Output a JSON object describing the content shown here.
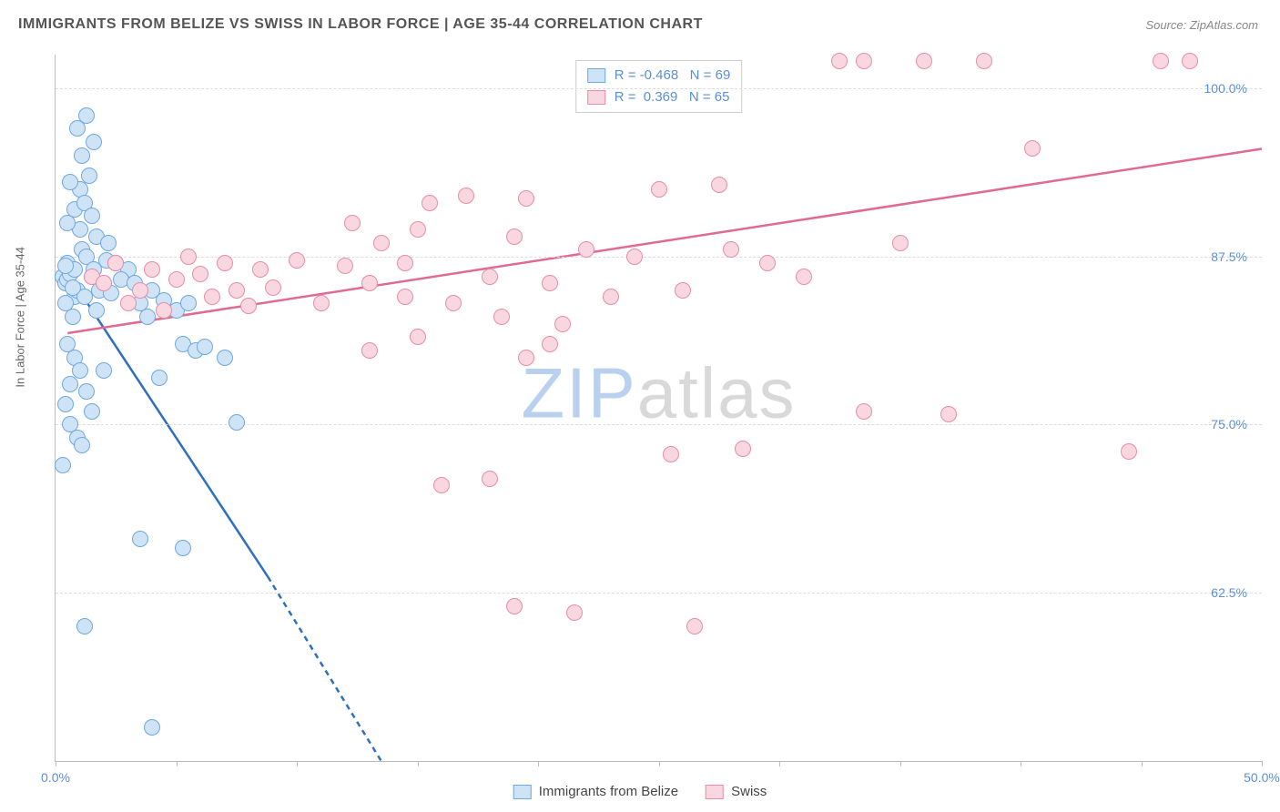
{
  "title": "IMMIGRANTS FROM BELIZE VS SWISS IN LABOR FORCE | AGE 35-44 CORRELATION CHART",
  "source": "Source: ZipAtlas.com",
  "ylabel": "In Labor Force | Age 35-44",
  "watermark_zip": "ZIP",
  "watermark_atlas": "atlas",
  "watermark_color_zip": "#b9d1ee",
  "watermark_color_atlas": "#d9d9d9",
  "chart": {
    "type": "scatter",
    "background_color": "#ffffff",
    "grid_color": "#dddddd",
    "axis_color": "#bbbbbb",
    "tick_label_color": "#5b8fd6",
    "axis_label_color": "#666666",
    "xlim": [
      0,
      50
    ],
    "ylim": [
      50,
      102.5
    ],
    "xticks": [
      0,
      5,
      10,
      15,
      20,
      25,
      30,
      35,
      40,
      45,
      50
    ],
    "xtick_labels": {
      "0": "0.0%",
      "50": "50.0%"
    },
    "yticks": [
      62.5,
      75,
      87.5,
      100
    ],
    "ytick_labels": [
      "62.5%",
      "75.0%",
      "87.5%",
      "100.0%"
    ],
    "marker_radius": 9,
    "line_width": 2.5,
    "series": [
      {
        "name": "Immigrants from Belize",
        "fill": "#cfe3f7",
        "stroke": "#6fa8e0",
        "line_color": "#2f6fc2",
        "R": "-0.468",
        "N": "69",
        "trend": {
          "x1": 0.3,
          "y1": 86.8,
          "x2": 8.8,
          "y2": 63.7,
          "dash_x2": 13.5,
          "dash_y2": 50
        },
        "points": [
          [
            0.3,
            86
          ],
          [
            0.4,
            85.5
          ],
          [
            0.6,
            86.2
          ],
          [
            0.8,
            84.5
          ],
          [
            0.5,
            87
          ],
          [
            0.9,
            85
          ],
          [
            1.1,
            88
          ],
          [
            1.0,
            89.5
          ],
          [
            1.3,
            87.5
          ],
          [
            0.7,
            83
          ],
          [
            0.4,
            84
          ],
          [
            1.5,
            86
          ],
          [
            1.2,
            84.5
          ],
          [
            1.8,
            85
          ],
          [
            1.6,
            86.5
          ],
          [
            2.0,
            85.5
          ],
          [
            1.7,
            83.5
          ],
          [
            2.3,
            84.8
          ],
          [
            2.1,
            87.2
          ],
          [
            0.5,
            90
          ],
          [
            0.8,
            91
          ],
          [
            1.0,
            92.5
          ],
          [
            1.2,
            91.5
          ],
          [
            1.5,
            90.5
          ],
          [
            0.6,
            93
          ],
          [
            1.4,
            93.5
          ],
          [
            1.1,
            95
          ],
          [
            1.6,
            96
          ],
          [
            1.3,
            98
          ],
          [
            0.9,
            97
          ],
          [
            1.7,
            89
          ],
          [
            2.2,
            88.5
          ],
          [
            2.5,
            87
          ],
          [
            3.0,
            86.5
          ],
          [
            2.7,
            85.8
          ],
          [
            3.3,
            85.5
          ],
          [
            3.5,
            84
          ],
          [
            3.8,
            83
          ],
          [
            4.0,
            85
          ],
          [
            4.5,
            84.2
          ],
          [
            5.0,
            83.5
          ],
          [
            5.5,
            84
          ],
          [
            5.3,
            81
          ],
          [
            5.8,
            80.5
          ],
          [
            6.2,
            80.8
          ],
          [
            4.3,
            78.5
          ],
          [
            7.0,
            80
          ],
          [
            7.5,
            75.2
          ],
          [
            0.5,
            81
          ],
          [
            0.8,
            80
          ],
          [
            1.0,
            79
          ],
          [
            1.3,
            77.5
          ],
          [
            0.6,
            75
          ],
          [
            0.4,
            76.5
          ],
          [
            0.9,
            74
          ],
          [
            1.1,
            73.5
          ],
          [
            0.3,
            72
          ],
          [
            0.6,
            78
          ],
          [
            1.5,
            76
          ],
          [
            2.0,
            79
          ],
          [
            3.5,
            66.5
          ],
          [
            5.3,
            65.8
          ],
          [
            1.2,
            60
          ],
          [
            0.5,
            85.8
          ],
          [
            0.6,
            86.2
          ],
          [
            0.8,
            86.5
          ],
          [
            0.4,
            86.8
          ],
          [
            0.7,
            85.2
          ],
          [
            4.0,
            52.5
          ]
        ]
      },
      {
        "name": "Swiss",
        "fill": "#f9d7e1",
        "stroke": "#e88ca8",
        "line_color": "#e06a91",
        "R": "0.369",
        "N": "65",
        "trend": {
          "x1": 0.5,
          "y1": 81.8,
          "x2": 50,
          "y2": 95.5
        },
        "points": [
          [
            1.5,
            86
          ],
          [
            2.0,
            85.5
          ],
          [
            2.5,
            87
          ],
          [
            3.0,
            84
          ],
          [
            3.5,
            85
          ],
          [
            4.0,
            86.5
          ],
          [
            4.5,
            83.5
          ],
          [
            5.0,
            85.8
          ],
          [
            5.5,
            87.5
          ],
          [
            6.0,
            86.2
          ],
          [
            6.5,
            84.5
          ],
          [
            7.0,
            87
          ],
          [
            7.5,
            85
          ],
          [
            8.0,
            83.8
          ],
          [
            8.5,
            86.5
          ],
          [
            9.0,
            85.2
          ],
          [
            10.0,
            87.2
          ],
          [
            11.0,
            84
          ],
          [
            12.0,
            86.8
          ],
          [
            13.0,
            85.5
          ],
          [
            12.3,
            90
          ],
          [
            13.5,
            88.5
          ],
          [
            14.5,
            87
          ],
          [
            15.0,
            89.5
          ],
          [
            15.5,
            91.5
          ],
          [
            16.5,
            84
          ],
          [
            17.0,
            92
          ],
          [
            18.0,
            86
          ],
          [
            18.5,
            83
          ],
          [
            19.0,
            89
          ],
          [
            19.5,
            91.8
          ],
          [
            20.5,
            85.5
          ],
          [
            21.0,
            82.5
          ],
          [
            22.0,
            88
          ],
          [
            23.0,
            84.5
          ],
          [
            24.0,
            87.5
          ],
          [
            25.0,
            92.5
          ],
          [
            26.0,
            85
          ],
          [
            27.5,
            92.8
          ],
          [
            28.0,
            88
          ],
          [
            29.5,
            87
          ],
          [
            31.0,
            86
          ],
          [
            32.5,
            102
          ],
          [
            33.5,
            102
          ],
          [
            35.0,
            88.5
          ],
          [
            36.0,
            102
          ],
          [
            38.5,
            102
          ],
          [
            40.5,
            95.5
          ],
          [
            37.0,
            75.8
          ],
          [
            33.5,
            76
          ],
          [
            28.5,
            73.2
          ],
          [
            25.5,
            72.8
          ],
          [
            19.5,
            80
          ],
          [
            20.5,
            81
          ],
          [
            19.0,
            61.5
          ],
          [
            21.5,
            61
          ],
          [
            26.5,
            60
          ],
          [
            16.0,
            70.5
          ],
          [
            18.0,
            71
          ],
          [
            15.0,
            81.5
          ],
          [
            44.5,
            73
          ],
          [
            45.8,
            102
          ],
          [
            47.0,
            102
          ],
          [
            13.0,
            80.5
          ],
          [
            14.5,
            84.5
          ]
        ]
      }
    ]
  },
  "legend": {
    "series1_label": "Immigrants from Belize",
    "series2_label": "Swiss"
  }
}
